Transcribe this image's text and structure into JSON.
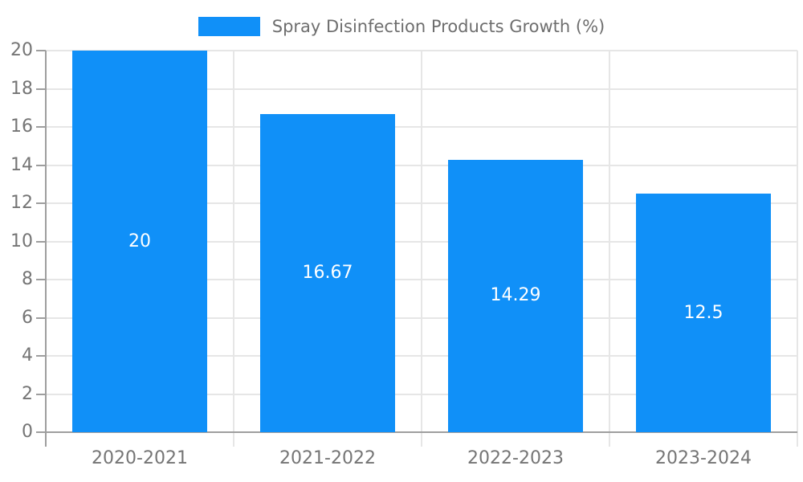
{
  "legend": {
    "label": "Spray Disinfection Products Growth (%)",
    "swatch_color": "#1090f8"
  },
  "chart_data": {
    "type": "bar",
    "title": "Spray Disinfection Products Growth (%)",
    "categories": [
      "2020-2021",
      "2021-2022",
      "2022-2023",
      "2023-2024"
    ],
    "values": [
      20,
      16.67,
      14.29,
      12.5
    ],
    "bar_labels": [
      "20",
      "16.67",
      "14.29",
      "12.5"
    ],
    "xlabel": "",
    "ylabel": "",
    "ylim": [
      0,
      20
    ],
    "ytick_step": 2,
    "yticks": [
      0,
      2,
      4,
      6,
      8,
      10,
      12,
      14,
      16,
      18,
      20
    ],
    "grid": true,
    "legend_position": "top-center",
    "bar_color": "#1090f8",
    "bar_label_color": "#ffffff"
  },
  "colors": {
    "background": "#ffffff",
    "axis_line": "#9e9e9e",
    "grid_line": "#e6e6e6",
    "tick_label": "#757575",
    "legend_text": "#6e6e6e"
  }
}
